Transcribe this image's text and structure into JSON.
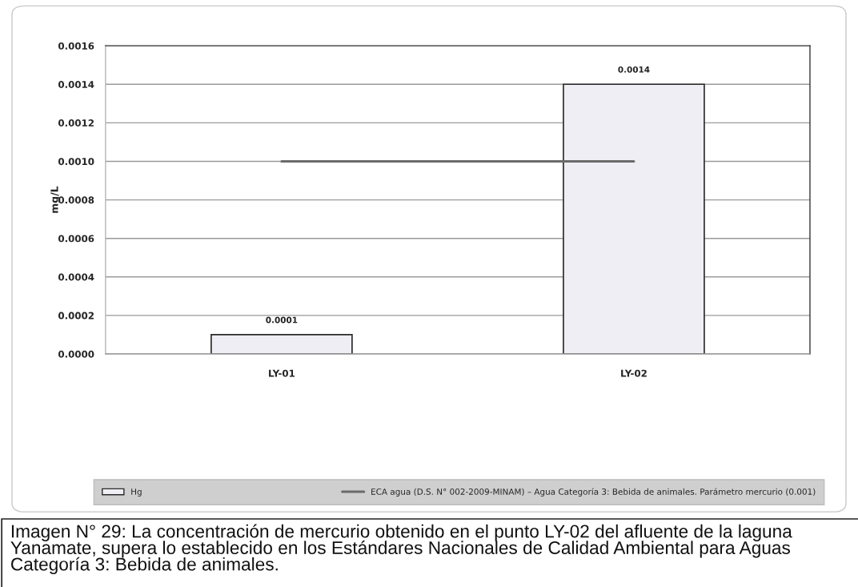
{
  "chart_data": {
    "type": "bar",
    "ylabel": "mg/L",
    "categories": [
      "LY-01",
      "LY-02"
    ],
    "series": [
      {
        "name": "Hg",
        "color": "#efeef4",
        "values": [
          0.0001,
          0.0014
        ],
        "value_labels": [
          "0.0001",
          "0.0014"
        ]
      },
      {
        "name": "ECA agua (D.S. N° 002-2009-MINAM) – Agua Categoría 3: Bebida de animales. Parámetro mercurio (0.001)",
        "type": "line",
        "color": "#6b6b6b",
        "values": [
          0.001,
          0.001
        ]
      }
    ],
    "ylim": [
      0,
      0.0016
    ],
    "yticks": [
      {
        "value": 0,
        "label": "0.0000"
      },
      {
        "value": 0.0002,
        "label": "0.0002"
      },
      {
        "value": 0.0004,
        "label": "0.0004"
      },
      {
        "value": 0.0006,
        "label": "0.0006"
      },
      {
        "value": 0.0008,
        "label": "0.0008"
      },
      {
        "value": 0.001,
        "label": "0.0010"
      },
      {
        "value": 0.0012,
        "label": "0.0012"
      },
      {
        "value": 0.0014,
        "label": "0.0014"
      },
      {
        "value": 0.0016,
        "label": "0.0016"
      }
    ],
    "grid": "y",
    "legend": "bottom",
    "annotations": [
      "Imagen N° 29: La concentración de mercurio obtenido en el punto LY-02 del afluente de la laguna Yanamate, supera lo establecido en los Estándares Nacionales de Calidad Ambiental para Aguas Categoría 3: Bebida de animales."
    ]
  }
}
